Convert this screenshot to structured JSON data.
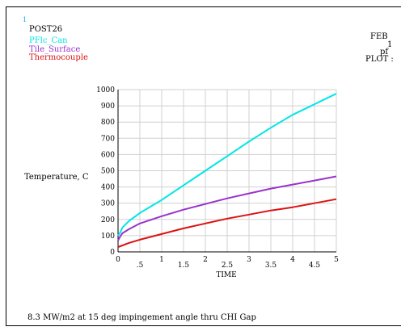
{
  "header": {
    "index": "1",
    "title": "POST26",
    "right_lines": [
      "FEB",
      "1",
      "pf",
      "PLOT :"
    ]
  },
  "footer_note": "8.3 MW/m2 at 15 deg impingement angle thru CHI Gap",
  "colors": {
    "index": "#00aaff",
    "grid": "#d0d0d0",
    "axis": "#000000"
  },
  "chart_data": {
    "type": "line",
    "title": "",
    "xlabel": "TIME",
    "ylabel": "Temperature, C",
    "xlim": [
      0,
      5
    ],
    "ylim": [
      0,
      1000
    ],
    "x_ticks": [
      0,
      0.5,
      1,
      1.5,
      2,
      2.5,
      3,
      3.5,
      4,
      4.5,
      5
    ],
    "x_tick_labels": [
      "0",
      ".5",
      "1",
      "1.5",
      "2",
      "2.5",
      "3",
      "3.5",
      "4",
      "4.5",
      "5"
    ],
    "y_ticks": [
      0,
      100,
      200,
      300,
      400,
      500,
      600,
      700,
      800,
      900,
      1000
    ],
    "y_tick_labels": [
      "0",
      "100",
      "200",
      "300",
      "400",
      "500",
      "600",
      "700",
      "800",
      "900",
      "1000"
    ],
    "grid": true,
    "legend_position": "top-left",
    "x": [
      0,
      0.05,
      0.1,
      0.25,
      0.5,
      1,
      1.5,
      2,
      2.5,
      3,
      3.5,
      4,
      4.5,
      5
    ],
    "series": [
      {
        "name": "PFlc_Can",
        "color": "#00e5e5",
        "values": [
          100,
          120,
          150,
          190,
          240,
          320,
          410,
          500,
          590,
          680,
          765,
          845,
          910,
          975
        ]
      },
      {
        "name": "Tile_Surface",
        "color": "#9933cc",
        "values": [
          70,
          95,
          115,
          140,
          175,
          220,
          260,
          295,
          330,
          360,
          390,
          415,
          440,
          465
        ]
      },
      {
        "name": "Thermocouple",
        "color": "#dd1111",
        "values": [
          30,
          35,
          40,
          55,
          75,
          110,
          145,
          175,
          205,
          230,
          255,
          275,
          300,
          325
        ]
      }
    ]
  }
}
